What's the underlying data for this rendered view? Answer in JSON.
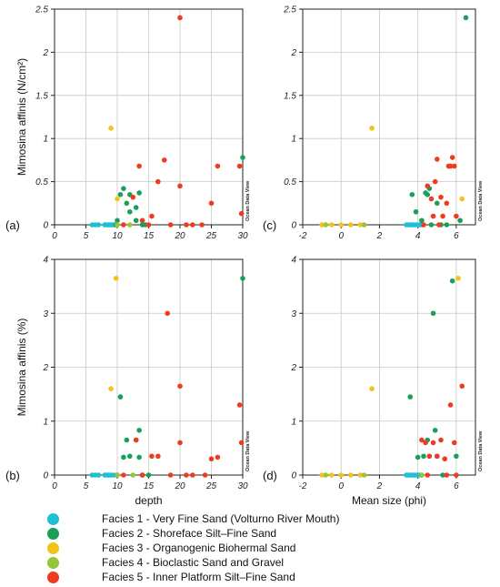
{
  "figure": {
    "facies": [
      {
        "id": 1,
        "label": "Facies 1 - Very Fine Sand (Volturno River Mouth)",
        "color": "#1ec0d6"
      },
      {
        "id": 2,
        "label": "Facies 2 - Shoreface Silt–Fine Sand",
        "color": "#1a9f5a"
      },
      {
        "id": 3,
        "label": "Facies 3 - Organogenic Biohermal Sand",
        "color": "#f2c318"
      },
      {
        "id": 4,
        "label": "Facies 4 - Bioclastic Sand and Gravel",
        "color": "#96c43a"
      },
      {
        "id": 5,
        "label": "Facies 5 - Inner Platform Silt–Fine Sand",
        "color": "#ee3b22"
      }
    ],
    "watermark": "Ocean Data View"
  },
  "chart_data": [
    {
      "type": "scatter",
      "panel_label": "(a)",
      "xlabel": "",
      "ylabel": "Mimosina affinis (N/cm²)",
      "xlim": [
        0,
        30
      ],
      "ylim": [
        0,
        2.5
      ],
      "xticks": [
        0,
        5,
        10,
        15,
        20,
        25,
        30
      ],
      "yticks": [
        0,
        0.5,
        1,
        1.5,
        2,
        2.5
      ],
      "ytick_labels": [
        "0",
        "0.5",
        "1",
        "1.5",
        "2",
        "2.5"
      ],
      "grid": true,
      "series": [
        {
          "facies": 1,
          "points": [
            [
              6,
              0
            ],
            [
              6.5,
              0
            ],
            [
              7,
              0
            ],
            [
              8,
              0
            ],
            [
              8.2,
              0
            ],
            [
              8.5,
              0
            ],
            [
              8.7,
              0
            ],
            [
              9,
              0
            ],
            [
              9.2,
              0
            ],
            [
              9.5,
              0
            ]
          ]
        },
        {
          "facies": 2,
          "points": [
            [
              9.8,
              0
            ],
            [
              10,
              0.05
            ],
            [
              10.5,
              0.35
            ],
            [
              11,
              0.42
            ],
            [
              11.5,
              0.25
            ],
            [
              12,
              0.15
            ],
            [
              12,
              0.35
            ],
            [
              13,
              0.05
            ],
            [
              13,
              0.2
            ],
            [
              13.5,
              0.37
            ],
            [
              14,
              0
            ],
            [
              14.5,
              0
            ],
            [
              30,
              0.78
            ]
          ]
        },
        {
          "facies": 3,
          "points": [
            [
              9,
              1.12
            ],
            [
              10,
              0.3
            ]
          ]
        },
        {
          "facies": 4,
          "points": [
            [
              10,
              0
            ],
            [
              12,
              0
            ]
          ]
        },
        {
          "facies": 5,
          "points": [
            [
              11,
              0
            ],
            [
              12.5,
              0.32
            ],
            [
              13.5,
              0.68
            ],
            [
              14,
              0.05
            ],
            [
              15,
              0
            ],
            [
              15.5,
              0.1
            ],
            [
              16.5,
              0.5
            ],
            [
              17.5,
              0.75
            ],
            [
              18.5,
              0
            ],
            [
              20,
              2.4
            ],
            [
              20,
              0.45
            ],
            [
              21,
              0
            ],
            [
              22,
              0
            ],
            [
              23.5,
              0
            ],
            [
              25,
              0.25
            ],
            [
              26,
              0.68
            ],
            [
              29.5,
              0.68
            ],
            [
              29.8,
              0.13
            ]
          ]
        }
      ]
    },
    {
      "type": "scatter",
      "panel_label": "(c)",
      "xlabel": "",
      "ylabel": "",
      "xlim": [
        -2,
        7
      ],
      "ylim": [
        0,
        2.5
      ],
      "xticks": [
        -2,
        0,
        2,
        4,
        6
      ],
      "yticks": [
        0,
        0.5,
        1,
        1.5,
        2,
        2.5
      ],
      "ytick_labels": [
        "0",
        "0.5",
        "1",
        "1.5",
        "2",
        "2.5"
      ],
      "grid": true,
      "series": [
        {
          "facies": 1,
          "points": [
            [
              3.4,
              0
            ],
            [
              3.5,
              0
            ],
            [
              3.6,
              0
            ],
            [
              3.7,
              0
            ],
            [
              3.8,
              0
            ],
            [
              3.9,
              0
            ],
            [
              4,
              0
            ],
            [
              4.1,
              0
            ],
            [
              4.2,
              0
            ]
          ]
        },
        {
          "facies": 2,
          "points": [
            [
              3.7,
              0.35
            ],
            [
              3.9,
              0.15
            ],
            [
              4.2,
              0.05
            ],
            [
              4.4,
              0.37
            ],
            [
              4.5,
              0.35
            ],
            [
              4.6,
              0.42
            ],
            [
              4.7,
              0
            ],
            [
              5,
              0.25
            ],
            [
              5.2,
              0
            ],
            [
              5.5,
              0
            ],
            [
              6.2,
              0.05
            ],
            [
              6.5,
              2.4
            ]
          ]
        },
        {
          "facies": 3,
          "points": [
            [
              -1,
              0
            ],
            [
              -0.5,
              0
            ],
            [
              0,
              0
            ],
            [
              0.5,
              0
            ],
            [
              1,
              0
            ],
            [
              1.6,
              1.12
            ],
            [
              6.3,
              0.3
            ]
          ]
        },
        {
          "facies": 4,
          "points": [
            [
              -0.8,
              0
            ],
            [
              1.2,
              0
            ],
            [
              4.3,
              0
            ]
          ]
        },
        {
          "facies": 5,
          "points": [
            [
              4.3,
              0
            ],
            [
              4.5,
              0.45
            ],
            [
              4.7,
              0.3
            ],
            [
              4.8,
              0.1
            ],
            [
              4.9,
              0.5
            ],
            [
              5,
              0.76
            ],
            [
              5.1,
              0
            ],
            [
              5.2,
              0.32
            ],
            [
              5.3,
              0.1
            ],
            [
              5.5,
              0.25
            ],
            [
              5.6,
              0.68
            ],
            [
              5.7,
              0.68
            ],
            [
              5.8,
              0.78
            ],
            [
              5.9,
              0.68
            ],
            [
              6,
              0.1
            ]
          ]
        }
      ]
    },
    {
      "type": "scatter",
      "panel_label": "(b)",
      "xlabel": "depth",
      "ylabel": "Mimosina affinis (%)",
      "xlim": [
        0,
        30
      ],
      "ylim": [
        0,
        4
      ],
      "xticks": [
        0,
        5,
        10,
        15,
        20,
        25,
        30
      ],
      "yticks": [
        0,
        1,
        2,
        3,
        4
      ],
      "ytick_labels": [
        "0",
        "1",
        "2",
        "3",
        "4"
      ],
      "grid": true,
      "series": [
        {
          "facies": 1,
          "points": [
            [
              6,
              0
            ],
            [
              6.5,
              0
            ],
            [
              7,
              0
            ],
            [
              8,
              0
            ],
            [
              8.2,
              0
            ],
            [
              8.5,
              0
            ],
            [
              8.7,
              0
            ],
            [
              9,
              0
            ],
            [
              9.5,
              0
            ]
          ]
        },
        {
          "facies": 2,
          "points": [
            [
              10,
              0
            ],
            [
              10.5,
              1.45
            ],
            [
              11,
              0.33
            ],
            [
              11.5,
              0.65
            ],
            [
              12,
              0.35
            ],
            [
              13,
              0.65
            ],
            [
              13.5,
              0.83
            ],
            [
              13.5,
              0.33
            ],
            [
              14,
              0
            ],
            [
              15,
              0
            ],
            [
              30,
              3.65
            ]
          ]
        },
        {
          "facies": 3,
          "points": [
            [
              9,
              1.6
            ],
            [
              9.8,
              3.65
            ]
          ]
        },
        {
          "facies": 4,
          "points": [
            [
              10,
              0
            ],
            [
              12.5,
              0
            ]
          ]
        },
        {
          "facies": 5,
          "points": [
            [
              11,
              0
            ],
            [
              13,
              0.65
            ],
            [
              14,
              0
            ],
            [
              15.5,
              0.35
            ],
            [
              16.5,
              0.35
            ],
            [
              18,
              3
            ],
            [
              18.5,
              0
            ],
            [
              20,
              1.65
            ],
            [
              20,
              0.6
            ],
            [
              21,
              0
            ],
            [
              22,
              0
            ],
            [
              24,
              0
            ],
            [
              25,
              0.3
            ],
            [
              26,
              0.33
            ],
            [
              29.5,
              1.3
            ],
            [
              29.8,
              0.6
            ]
          ]
        }
      ]
    },
    {
      "type": "scatter",
      "panel_label": "(d)",
      "xlabel": "Mean size (phi)",
      "ylabel": "",
      "xlim": [
        -2,
        7
      ],
      "ylim": [
        0,
        4
      ],
      "xticks": [
        -2,
        0,
        2,
        4,
        6
      ],
      "yticks": [
        0,
        1,
        2,
        3,
        4
      ],
      "ytick_labels": [
        "0",
        "1",
        "2",
        "3",
        "4"
      ],
      "grid": true,
      "series": [
        {
          "facies": 1,
          "points": [
            [
              3.4,
              0
            ],
            [
              3.5,
              0
            ],
            [
              3.6,
              0
            ],
            [
              3.7,
              0
            ],
            [
              3.8,
              0
            ],
            [
              3.9,
              0
            ],
            [
              4,
              0
            ],
            [
              4.1,
              0
            ],
            [
              4.2,
              0
            ]
          ]
        },
        {
          "facies": 2,
          "points": [
            [
              3.6,
              1.45
            ],
            [
              4,
              0.33
            ],
            [
              4.3,
              0.35
            ],
            [
              4.5,
              0.65
            ],
            [
              4.8,
              3
            ],
            [
              4.9,
              0.83
            ],
            [
              5,
              0.35
            ],
            [
              5.3,
              0
            ],
            [
              5.8,
              3.6
            ],
            [
              6,
              0.35
            ]
          ]
        },
        {
          "facies": 3,
          "points": [
            [
              -1,
              0
            ],
            [
              -0.5,
              0
            ],
            [
              0,
              0
            ],
            [
              0.5,
              0
            ],
            [
              1,
              0
            ],
            [
              1.6,
              1.6
            ],
            [
              6.1,
              3.65
            ]
          ]
        },
        {
          "facies": 4,
          "points": [
            [
              -0.8,
              0
            ],
            [
              1.2,
              0
            ],
            [
              4.2,
              0
            ]
          ]
        },
        {
          "facies": 5,
          "points": [
            [
              4.2,
              0.65
            ],
            [
              4.4,
              0.6
            ],
            [
              4.5,
              0
            ],
            [
              4.6,
              0.35
            ],
            [
              4.8,
              0.6
            ],
            [
              5,
              0.35
            ],
            [
              5.2,
              0.65
            ],
            [
              5.4,
              0.3
            ],
            [
              5.5,
              0
            ],
            [
              5.7,
              1.3
            ],
            [
              5.9,
              0.6
            ],
            [
              6,
              0
            ],
            [
              6.3,
              1.65
            ]
          ]
        }
      ]
    }
  ]
}
